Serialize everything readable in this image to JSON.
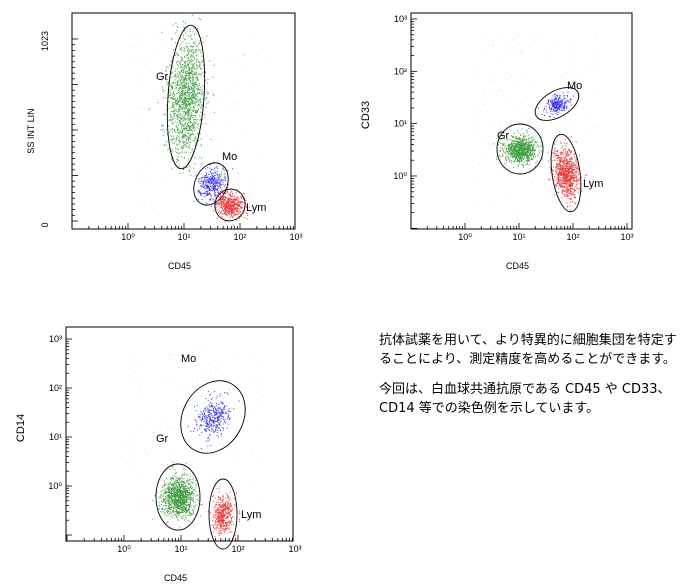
{
  "chart_data": [
    {
      "type": "scatter",
      "xlabel": "CD45",
      "ylabel": "SS INT LIN",
      "x_scale": "log",
      "x_ticks": [
        "10⁰",
        "10¹",
        "10²",
        "10³"
      ],
      "y_scale": "linear",
      "y_ticks": [
        "0",
        "1023"
      ],
      "ylim": [
        0,
        1023
      ],
      "gates": [
        {
          "name": "Gr",
          "color": "#1e8c1e",
          "x": 10,
          "y": 630
        },
        {
          "name": "Mo",
          "color": "#1a1ae6",
          "x": 25,
          "y": 180
        },
        {
          "name": "Lym",
          "color": "#e61414",
          "x": 55,
          "y": 105
        }
      ]
    },
    {
      "type": "scatter",
      "xlabel": "CD45",
      "ylabel": "CD33",
      "x_scale": "log",
      "x_ticks": [
        "10⁰",
        "10¹",
        "10²",
        "10³"
      ],
      "y_scale": "log",
      "y_ticks": [
        "10⁰",
        "10¹",
        "10²",
        "10³"
      ],
      "gates": [
        {
          "name": "Mo",
          "color": "#1a1ae6",
          "x": 30,
          "y": 14
        },
        {
          "name": "Gr",
          "color": "#1e8c1e",
          "x": 10,
          "y": 3.8
        },
        {
          "name": "Lym",
          "color": "#e61414",
          "x": 60,
          "y": 1.0
        }
      ]
    },
    {
      "type": "scatter",
      "xlabel": "CD45",
      "ylabel": "CD14",
      "x_scale": "log",
      "x_ticks": [
        "10⁰",
        "10¹",
        "10²",
        "10³"
      ],
      "y_scale": "log",
      "y_ticks": [
        "10⁰",
        "10¹",
        "10²",
        "10³"
      ],
      "gates": [
        {
          "name": "Mo",
          "color": "#1a1ae6",
          "x": 35,
          "y": 30
        },
        {
          "name": "Gr",
          "color": "#1e8c1e",
          "x": 9,
          "y": 0.9
        },
        {
          "name": "Lym",
          "color": "#e61414",
          "x": 50,
          "y": 0.25
        }
      ]
    }
  ],
  "description": [
    "抗体試薬を用いて、より特異的に細胞集団を特定することにより、測定精度を高めることができます。",
    "今回は、白血球共通抗原である CD45 や CD33、CD14 等での染色例を示しています。"
  ]
}
